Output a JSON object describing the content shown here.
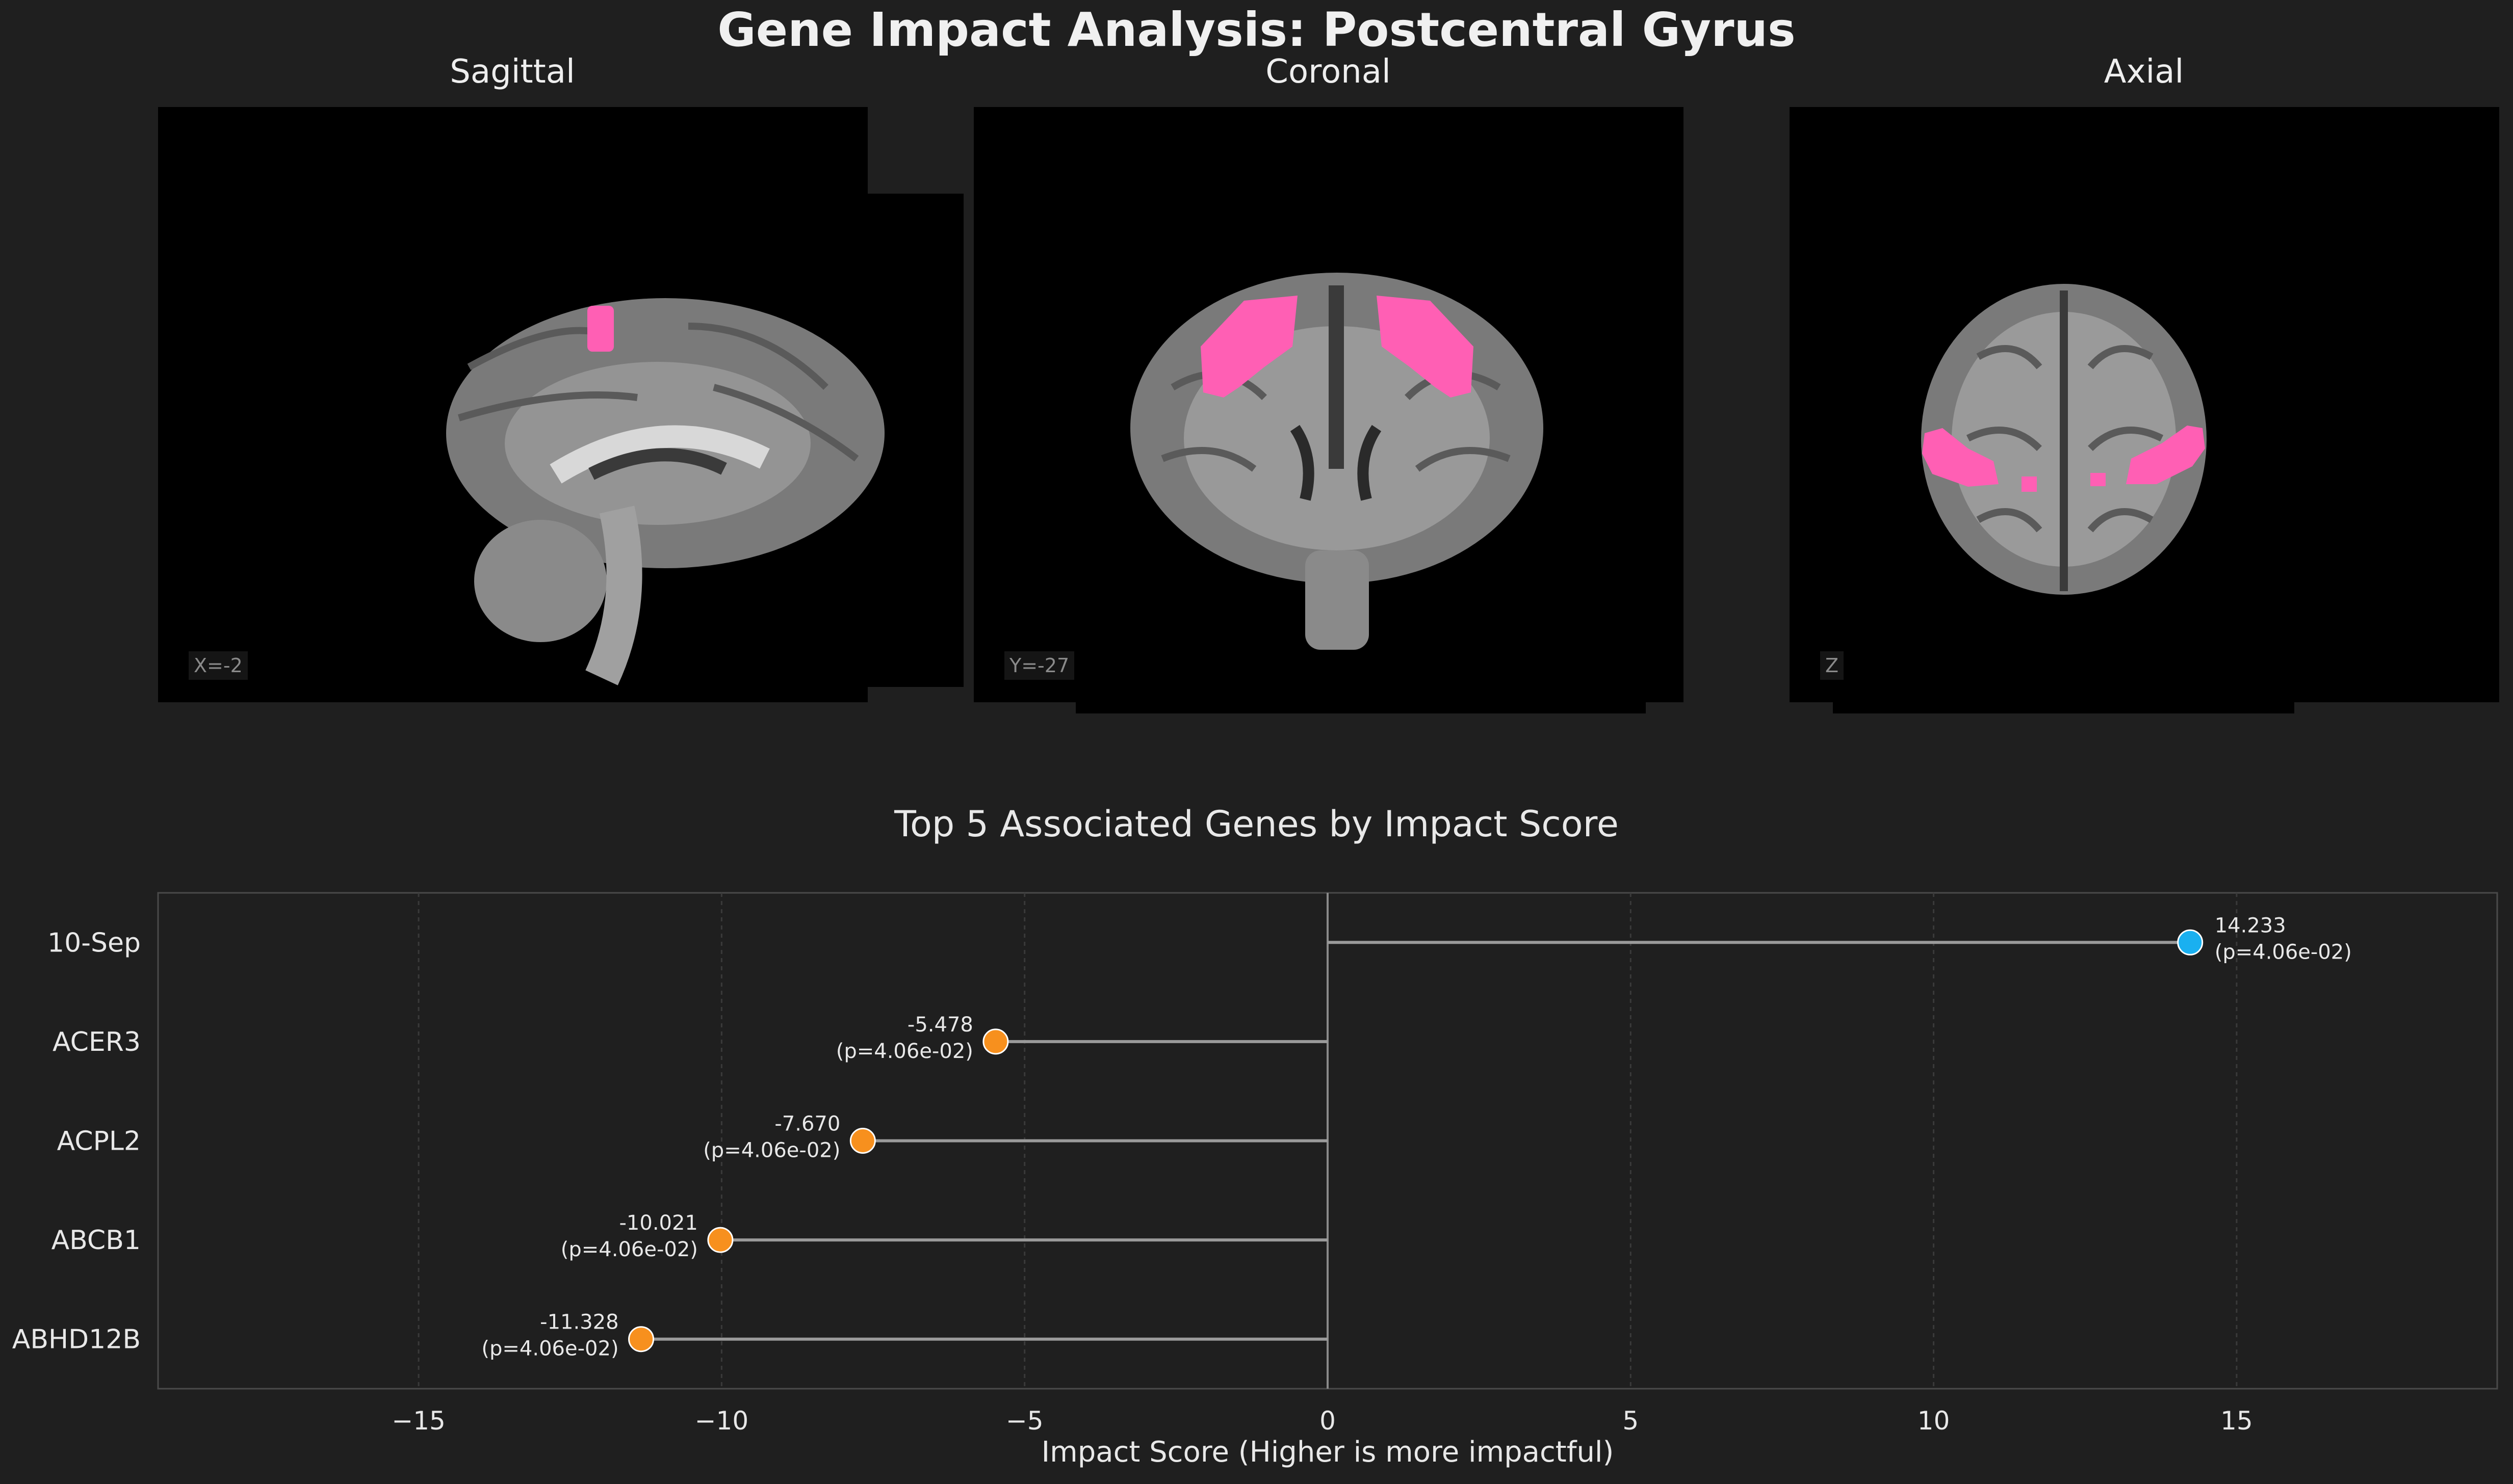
{
  "title": "Gene Impact Analysis: Postcentral Gyrus",
  "views": [
    {
      "name": "Sagittal",
      "coord": "X=-2"
    },
    {
      "name": "Coronal",
      "coord": "Y=-27"
    },
    {
      "name": "Axial",
      "coord": "Z"
    }
  ],
  "colors": {
    "background": "#1f1f1f",
    "highlight": "#ff5fb4",
    "positive": "#1ab0f0",
    "negative": "#f7901e",
    "stem": "#9a9a9a"
  },
  "chart_data": {
    "type": "lollipop",
    "title": "Top 5 Associated Genes by Impact Score",
    "xlabel": "Impact Score (Higher is more impactful)",
    "ylabel": "",
    "xlim": [
      -19.3,
      19.3
    ],
    "xticks": [
      -15,
      -10,
      -5,
      0,
      5,
      10,
      15
    ],
    "xtick_labels": [
      "−15",
      "−10",
      "−5",
      "0",
      "5",
      "10",
      "15"
    ],
    "grid": true,
    "categories": [
      "10-Sep",
      "ACER3",
      "ACPL2",
      "ABCB1",
      "ABHD12B"
    ],
    "values": [
      14.233,
      -5.478,
      -7.67,
      -10.021,
      -11.328
    ],
    "value_labels": [
      "14.233",
      "-5.478",
      "-7.670",
      "-10.021",
      "-11.328"
    ],
    "p_labels": [
      "(p=4.06e-02)",
      "(p=4.06e-02)",
      "(p=4.06e-02)",
      "(p=4.06e-02)",
      "(p=4.06e-02)"
    ]
  }
}
